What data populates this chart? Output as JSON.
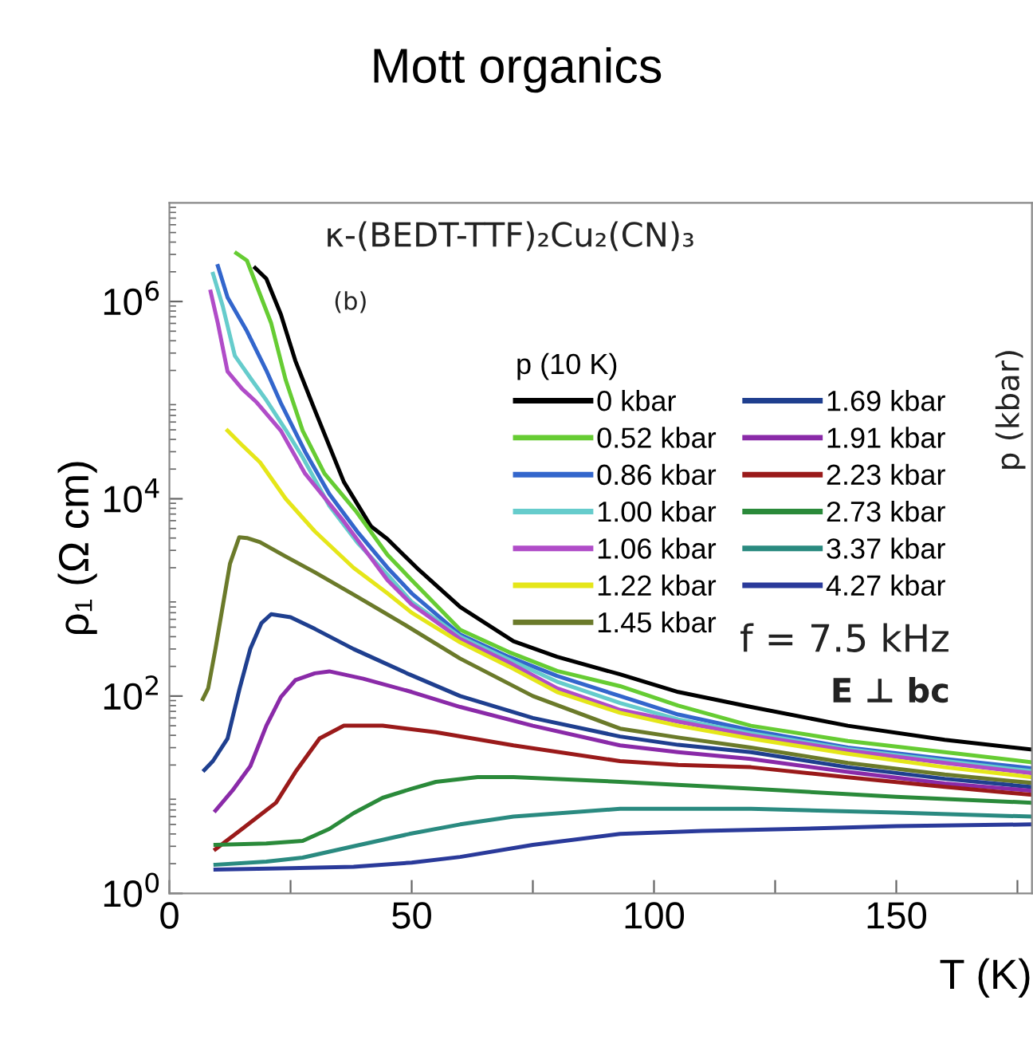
{
  "chart_data": {
    "type": "line",
    "title": "Mott organics",
    "xlabel": "T (K)",
    "ylabel": "ρ₁ (Ω cm)",
    "legend_title": "p (10 K)",
    "annotations": [
      "κ-(BEDT-TTF)₂Cu₂(CN)₃",
      "(b)",
      "f = 7.5 kHz",
      "E ⊥ bc",
      "p (kbar)"
    ],
    "log": "y",
    "xlim": [
      0,
      178
    ],
    "ylim": [
      1,
      10000000
    ],
    "xticks": [
      0,
      {
        "value": 25,
        "label": null
      },
      50,
      {
        "value": 75,
        "label": null
      },
      100,
      {
        "value": 125,
        "label": null
      },
      150,
      {
        "value": 175,
        "label": null
      }
    ],
    "yticks": [
      {
        "value": 1,
        "label": "10$^{0}$"
      },
      {
        "value": 100,
        "label": "10$^{2}$"
      },
      {
        "value": 10000,
        "label": "10$^{4}$"
      },
      {
        "value": 1000000,
        "label": "10$^{6}$"
      }
    ],
    "grid": false,
    "legend": "top right",
    "marker": "none",
    "line_style": "solid",
    "series": [
      {
        "name": "0 kbar",
        "color": "#000000",
        "x": [
          17.7,
          20,
          23,
          26,
          30,
          36,
          41.6,
          45,
          51.5,
          60,
          71,
          80,
          93,
          105,
          120,
          140,
          160,
          177.7
        ],
        "values": [
          2190000,
          1700000,
          741000,
          250000,
          79400,
          14800,
          5250,
          3900,
          1900,
          800,
          360,
          250,
          166,
          110,
          77.6,
          50,
          36,
          28.8
        ]
      },
      {
        "name": "0.52 kbar",
        "color": "#66cc33",
        "x": [
          13.8,
          16,
          21,
          24,
          27.5,
          32,
          38.4,
          45,
          50,
          60,
          70,
          80,
          93,
          105,
          120,
          140,
          160,
          177.7
        ],
        "values": [
          3090000,
          2600000,
          603000,
          160000,
          49000,
          18000,
          7590,
          2700,
          1500,
          470,
          280,
          180,
          126,
          80,
          50,
          35,
          27,
          21.4
        ]
      },
      {
        "name": "0.86 kbar",
        "color": "#3366cc",
        "x": [
          10,
          12,
          16,
          20,
          23,
          28,
          33,
          39,
          45,
          50,
          60,
          70,
          80,
          93,
          105,
          120,
          140,
          160,
          177.7
        ],
        "values": [
          2290000,
          1100000,
          500000,
          200000,
          93300,
          30000,
          11200,
          4500,
          2000,
          1100,
          420,
          250,
          160,
          100,
          65,
          45,
          30,
          23,
          18.6
        ]
      },
      {
        "name": "1.00 kbar",
        "color": "#66cccc",
        "x": [
          9,
          11,
          13.5,
          17,
          20,
          24,
          27.5,
          33,
          39,
          45,
          50,
          60,
          70,
          80,
          93,
          105,
          120,
          140,
          160,
          177.7
        ],
        "values": [
          1910000,
          900000,
          282000,
          160000,
          100000,
          50000,
          26300,
          8500,
          3500,
          1700,
          900,
          400,
          235,
          140,
          85,
          58,
          42,
          29,
          22,
          17.4
        ]
      },
      {
        "name": "1.06 kbar",
        "color": "#b04cc8",
        "x": [
          8.5,
          10,
          12,
          15,
          18,
          23,
          28,
          36,
          45,
          50,
          60,
          70,
          80,
          93,
          105,
          120,
          140,
          160,
          177.7
        ],
        "values": [
          1260000,
          600000,
          195000,
          130000,
          95000,
          49000,
          18000,
          5890,
          1500,
          850,
          380,
          220,
          120,
          72.4,
          55,
          40,
          28,
          21,
          16.6
        ]
      },
      {
        "name": "1.22 kbar",
        "color": "#e5e619",
        "x": [
          12,
          15,
          18.7,
          24,
          30,
          38,
          45,
          50,
          60,
          70,
          80,
          93,
          105,
          120,
          140,
          160,
          177.7
        ],
        "values": [
          49000,
          35000,
          23400,
          10000,
          4680,
          2000,
          1100,
          700,
          350,
          200,
          110,
          67.6,
          50,
          37,
          26,
          19,
          15.1
        ]
      },
      {
        "name": "1.45 kbar",
        "color": "#6b7a2a",
        "x": [
          6.9,
          8,
          9.5,
          11,
          12.5,
          14.4,
          16,
          18.7,
          24,
          30,
          38,
          48,
          60,
          75,
          93,
          105,
          120,
          140,
          160,
          177.7
        ],
        "values": [
          93.3,
          120,
          300,
          813,
          2200,
          4070,
          4000,
          3630,
          2600,
          1800,
          1070,
          550,
          240,
          100,
          46.8,
          38,
          30,
          21,
          16,
          13.2
        ]
      },
      {
        "name": "1.69 kbar",
        "color": "#1f3f8f",
        "x": [
          7.2,
          9,
          12,
          14.5,
          16.7,
          19,
          21,
          25,
          30,
          38,
          49.5,
          60,
          75,
          93,
          105,
          120,
          140,
          160,
          177.7
        ],
        "values": [
          17.8,
          22,
          37.2,
          120,
          302,
          550,
          676,
          631,
          480,
          300,
          166,
          100,
          60,
          38.9,
          32,
          27,
          19,
          14.5,
          12
        ]
      },
      {
        "name": "1.91 kbar",
        "color": "#8a2aa8",
        "x": [
          9.5,
          13,
          16.7,
          20,
          23,
          26,
          30,
          33,
          40,
          50,
          60,
          75,
          93,
          105,
          120,
          140,
          160,
          177.7
        ],
        "values": [
          6.9,
          11,
          19.5,
          50,
          97.7,
          145,
          170,
          178,
          150,
          110,
          77.6,
          50,
          31.6,
          27,
          23,
          17,
          13,
          11
        ]
      },
      {
        "name": "2.23 kbar",
        "color": "#9a1a1a",
        "x": [
          9.5,
          15,
          22,
          26,
          31,
          36,
          44,
          55,
          71,
          93,
          105,
          120,
          140,
          160,
          177.7
        ],
        "values": [
          2.8,
          4.5,
          8.3,
          17,
          37.2,
          50.1,
          50.1,
          43,
          31.6,
          21.9,
          20,
          19,
          15,
          12,
          10
        ]
      },
      {
        "name": "2.73 kbar",
        "color": "#2a8a3a",
        "x": [
          9.5,
          20,
          27.5,
          33,
          38,
          44,
          50,
          55,
          63.6,
          71,
          93,
          120,
          150,
          177.7
        ],
        "values": [
          3.1,
          3.2,
          3.4,
          4.5,
          6.5,
          9.3,
          11.5,
          13.5,
          15.1,
          15.1,
          13.5,
          11.5,
          9.5,
          8.3
        ]
      },
      {
        "name": "3.37 kbar",
        "color": "#2a8a80",
        "x": [
          9.5,
          20,
          27.5,
          38,
          49.5,
          60,
          71,
          93,
          120,
          150,
          177.7
        ],
        "values": [
          1.95,
          2.1,
          2.3,
          3,
          4,
          5,
          6,
          7.2,
          7.2,
          6.6,
          6
        ]
      },
      {
        "name": "4.27 kbar",
        "color": "#2a3a9a",
        "x": [
          9.5,
          25,
          38,
          50,
          60,
          75,
          93,
          110,
          129,
          150,
          177.7
        ],
        "values": [
          1.74,
          1.8,
          1.86,
          2.05,
          2.34,
          3.1,
          4,
          4.3,
          4.5,
          4.8,
          5
        ]
      }
    ]
  }
}
